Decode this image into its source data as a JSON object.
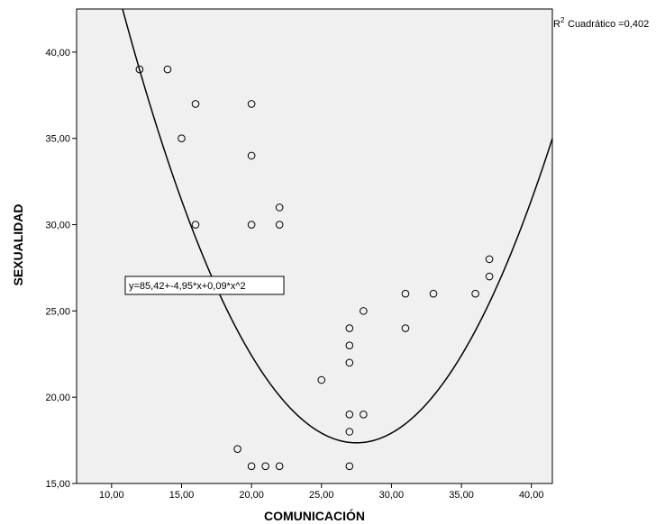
{
  "chart_data": {
    "type": "scatter",
    "xlabel": "COMUNICACIÓN",
    "ylabel": "SEXUALIDAD",
    "xlim": [
      7.5,
      41.5
    ],
    "ylim": [
      15,
      42.5
    ],
    "x_ticks": [
      "10,00",
      "15,00",
      "20,00",
      "25,00",
      "30,00",
      "35,00",
      "40,00"
    ],
    "y_ticks": [
      "15,00",
      "20,00",
      "25,00",
      "30,00",
      "35,00",
      "40,00"
    ],
    "points": [
      {
        "x": 12,
        "y": 39
      },
      {
        "x": 14,
        "y": 39
      },
      {
        "x": 16,
        "y": 37
      },
      {
        "x": 15,
        "y": 35
      },
      {
        "x": 16,
        "y": 30
      },
      {
        "x": 20,
        "y": 37
      },
      {
        "x": 20,
        "y": 34
      },
      {
        "x": 20,
        "y": 30
      },
      {
        "x": 22,
        "y": 31
      },
      {
        "x": 22,
        "y": 30
      },
      {
        "x": 19,
        "y": 17
      },
      {
        "x": 20,
        "y": 16
      },
      {
        "x": 21,
        "y": 16
      },
      {
        "x": 22,
        "y": 16
      },
      {
        "x": 25,
        "y": 21
      },
      {
        "x": 27,
        "y": 24
      },
      {
        "x": 27,
        "y": 23
      },
      {
        "x": 27,
        "y": 22
      },
      {
        "x": 27,
        "y": 19
      },
      {
        "x": 27,
        "y": 18
      },
      {
        "x": 27,
        "y": 16
      },
      {
        "x": 28,
        "y": 25
      },
      {
        "x": 28,
        "y": 19
      },
      {
        "x": 31,
        "y": 26
      },
      {
        "x": 31,
        "y": 24
      },
      {
        "x": 33,
        "y": 26
      },
      {
        "x": 36,
        "y": 26
      },
      {
        "x": 37,
        "y": 28
      },
      {
        "x": 37,
        "y": 27
      }
    ],
    "fit": {
      "type": "quadratic",
      "intercept": 85.42,
      "b1": -4.95,
      "b2": 0.09,
      "equation": "y=85,42+-4,95*x+0,09*x^2",
      "r2_label": "Cuadrático =0,402"
    },
    "grid": false,
    "plot_background": "#f0f0f0",
    "point_color": "#000000"
  }
}
